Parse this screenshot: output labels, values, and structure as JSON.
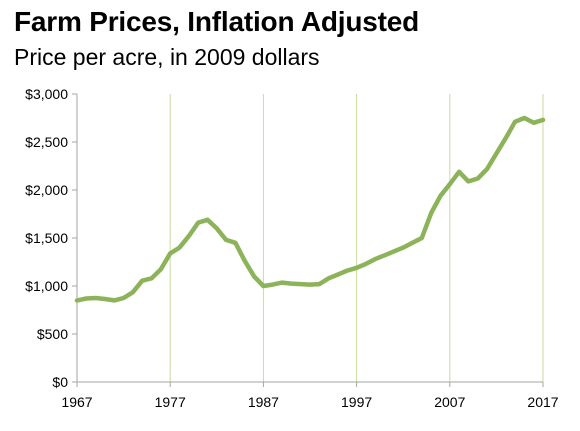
{
  "chart_data": {
    "type": "line",
    "title": "Farm Prices, Inflation Adjusted",
    "subtitle": "Price per acre, in 2009 dollars",
    "xlabel": "",
    "ylabel": "",
    "xlim": [
      1967,
      2017
    ],
    "ylim": [
      0,
      3000
    ],
    "grid": {
      "vertical": true,
      "horizontal": false
    },
    "legend": "none",
    "line_color": "#8db35a",
    "grid_color": "#c9dc9e",
    "axis_color": "#a6a6a6",
    "x_ticks": [
      1967,
      1977,
      1987,
      1997,
      2007,
      2017
    ],
    "y_ticks": [
      {
        "value": 0,
        "label": "$0"
      },
      {
        "value": 500,
        "label": "$500"
      },
      {
        "value": 1000,
        "label": "$1,000"
      },
      {
        "value": 1500,
        "label": "$1,500"
      },
      {
        "value": 2000,
        "label": "$2,000"
      },
      {
        "value": 2500,
        "label": "$2,500"
      },
      {
        "value": 3000,
        "label": "$3,000"
      }
    ],
    "series": [
      {
        "x": [
          1967,
          1968,
          1969,
          1970,
          1971,
          1972,
          1973,
          1974,
          1975,
          1976,
          1977,
          1978,
          1979,
          1980,
          1981,
          1982,
          1983,
          1984,
          1985,
          1986,
          1987,
          1988,
          1989,
          1990,
          1991,
          1992,
          1993,
          1994,
          1995,
          1996,
          1997,
          1998,
          1999,
          2000,
          2001,
          2002,
          2003,
          2004,
          2005,
          2006,
          2007,
          2008,
          2009,
          2010,
          2011,
          2012,
          2013,
          2014,
          2015,
          2016,
          2017
        ],
        "values": [
          850,
          870,
          875,
          865,
          850,
          875,
          935,
          1055,
          1080,
          1175,
          1340,
          1400,
          1520,
          1660,
          1690,
          1600,
          1480,
          1450,
          1260,
          1100,
          1000,
          1015,
          1035,
          1025,
          1020,
          1015,
          1020,
          1080,
          1120,
          1160,
          1190,
          1230,
          1280,
          1320,
          1360,
          1400,
          1450,
          1500,
          1760,
          1940,
          2060,
          2190,
          2090,
          2120,
          2220,
          2380,
          2540,
          2710,
          2750,
          2700,
          2730
        ]
      }
    ]
  }
}
